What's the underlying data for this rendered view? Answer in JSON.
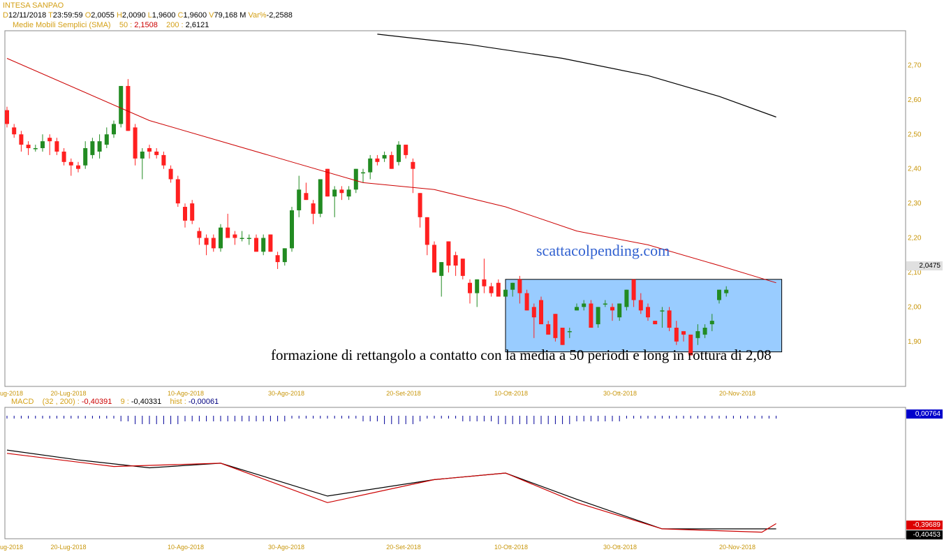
{
  "header": {
    "symbol": "INTESA SANPAO",
    "d_label": "D",
    "date": "12/11/2018",
    "t_label": "T",
    "time": "23:59:59",
    "o_label": "O",
    "open": "2,0055",
    "h_label": "H",
    "high": "2,0090",
    "l_label": "L",
    "low": "1,9600",
    "c_label": "C",
    "close": "1,9600",
    "v_label": "V",
    "volume": "79,168 M",
    "var_label": "Var%",
    "var": "-2,2588",
    "sma_label": "Medie Mobili Semplici (SMA)",
    "sma50_label": "50 :",
    "sma50": "2,1508",
    "sma200_label": "200 :",
    "sma200": "2,6121"
  },
  "macd_header": {
    "label": "MACD",
    "params": "(32 , 200) :",
    "macd": "-0,40391",
    "signal_label": "9 :",
    "signal": "-0,40331",
    "hist_label": "hist :",
    "hist": "-0,00061"
  },
  "price_tag": "2,0475",
  "macd_tags": {
    "hist": "0,00764",
    "macd": "-0,39689",
    "signal": "-0,40453"
  },
  "watermark": "scattacolpending.com",
  "annotation": "formazione di rettangolo a contatto con la media a 50 periodi e long in rottura di 2,08",
  "colors": {
    "up": "#228b22",
    "down": "#ff2020",
    "sma50": "#cc0000",
    "sma200": "#000000",
    "rect": "#99ccff",
    "axis_text": "#c8960a",
    "hist": "#000099"
  },
  "chart_data": {
    "type": "candlestick",
    "x_tick_labels": [
      "ug-2018",
      "20-Lug-2018",
      "10-Ago-2018",
      "30-Ago-2018",
      "20-Set-2018",
      "10-Ott-2018",
      "30-Ott-2018",
      "20-Nov-2018"
    ],
    "y_tick_labels": [
      "2,70",
      "2,60",
      "2,50",
      "2,40",
      "2,30",
      "2,20",
      "2,10",
      "2,00",
      "1,90"
    ],
    "ylim": [
      1.77,
      2.8
    ],
    "candles": [
      [
        2.57,
        2.58,
        2.52,
        2.53
      ],
      [
        2.52,
        2.53,
        2.49,
        2.5
      ],
      [
        2.5,
        2.51,
        2.45,
        2.47
      ],
      [
        2.47,
        2.48,
        2.44,
        2.46
      ],
      [
        2.46,
        2.47,
        2.45,
        2.46
      ],
      [
        2.46,
        2.5,
        2.45,
        2.48
      ],
      [
        2.49,
        2.5,
        2.44,
        2.48
      ],
      [
        2.48,
        2.49,
        2.44,
        2.45
      ],
      [
        2.45,
        2.46,
        2.41,
        2.42
      ],
      [
        2.42,
        2.43,
        2.38,
        2.41
      ],
      [
        2.41,
        2.42,
        2.39,
        2.4
      ],
      [
        2.41,
        2.48,
        2.4,
        2.46
      ],
      [
        2.44,
        2.49,
        2.43,
        2.48
      ],
      [
        2.45,
        2.5,
        2.43,
        2.48
      ],
      [
        2.47,
        2.52,
        2.46,
        2.5
      ],
      [
        2.5,
        2.54,
        2.49,
        2.53
      ],
      [
        2.53,
        2.64,
        2.52,
        2.64
      ],
      [
        2.64,
        2.66,
        2.51,
        2.51
      ],
      [
        2.52,
        2.53,
        2.41,
        2.43
      ],
      [
        2.43,
        2.46,
        2.37,
        2.45
      ],
      [
        2.46,
        2.47,
        2.43,
        2.45
      ],
      [
        2.45,
        2.46,
        2.43,
        2.44
      ],
      [
        2.44,
        2.45,
        2.4,
        2.41
      ],
      [
        2.4,
        2.41,
        2.36,
        2.37
      ],
      [
        2.37,
        2.38,
        2.29,
        2.3
      ],
      [
        2.29,
        2.3,
        2.23,
        2.25
      ],
      [
        2.3,
        2.31,
        2.24,
        2.25
      ],
      [
        2.22,
        2.23,
        2.18,
        2.2
      ],
      [
        2.2,
        2.21,
        2.15,
        2.18
      ],
      [
        2.2,
        2.21,
        2.16,
        2.17
      ],
      [
        2.17,
        2.24,
        2.16,
        2.23
      ],
      [
        2.23,
        2.27,
        2.2,
        2.2
      ],
      [
        2.21,
        2.22,
        2.18,
        2.2
      ],
      [
        2.2,
        2.22,
        2.19,
        2.2
      ],
      [
        2.2,
        2.21,
        2.18,
        2.2
      ],
      [
        2.2,
        2.21,
        2.16,
        2.16
      ],
      [
        2.16,
        2.21,
        2.15,
        2.2
      ],
      [
        2.21,
        2.21,
        2.16,
        2.16
      ],
      [
        2.15,
        2.16,
        2.11,
        2.13
      ],
      [
        2.13,
        2.17,
        2.12,
        2.17
      ],
      [
        2.17,
        2.29,
        2.16,
        2.28
      ],
      [
        2.28,
        2.38,
        2.26,
        2.34
      ],
      [
        2.33,
        2.36,
        2.31,
        2.31
      ],
      [
        2.3,
        2.31,
        2.24,
        2.27
      ],
      [
        2.27,
        2.37,
        2.26,
        2.37
      ],
      [
        2.4,
        2.4,
        2.32,
        2.32
      ],
      [
        2.32,
        2.35,
        2.26,
        2.34
      ],
      [
        2.34,
        2.35,
        2.31,
        2.33
      ],
      [
        2.32,
        2.35,
        2.31,
        2.34
      ],
      [
        2.34,
        2.4,
        2.33,
        2.4
      ],
      [
        2.39,
        2.4,
        2.36,
        2.39
      ],
      [
        2.39,
        2.44,
        2.37,
        2.43
      ],
      [
        2.43,
        2.44,
        2.41,
        2.42
      ],
      [
        2.43,
        2.45,
        2.42,
        2.44
      ],
      [
        2.44,
        2.45,
        2.4,
        2.4
      ],
      [
        2.42,
        2.48,
        2.41,
        2.47
      ],
      [
        2.47,
        2.47,
        2.43,
        2.44
      ],
      [
        2.42,
        2.43,
        2.33,
        2.4
      ],
      [
        2.33,
        2.33,
        2.23,
        2.26
      ],
      [
        2.26,
        2.26,
        2.15,
        2.18
      ],
      [
        2.18,
        2.19,
        2.1,
        2.1
      ],
      [
        2.09,
        2.13,
        2.03,
        2.13
      ],
      [
        2.19,
        2.19,
        2.1,
        2.12
      ],
      [
        2.15,
        2.16,
        2.09,
        2.12
      ],
      [
        2.14,
        2.14,
        2.08,
        2.09
      ],
      [
        2.07,
        2.08,
        2.01,
        2.04
      ],
      [
        2.04,
        2.08,
        2.0,
        2.08
      ],
      [
        2.08,
        2.14,
        2.04,
        2.06
      ],
      [
        2.06,
        2.07,
        2.03,
        2.04
      ],
      [
        2.07,
        2.08,
        2.03,
        2.03
      ],
      [
        2.03,
        2.05,
        2.03,
        2.05
      ],
      [
        2.05,
        2.07,
        2.03,
        2.07
      ],
      [
        2.08,
        2.09,
        2.01,
        2.04
      ],
      [
        2.04,
        2.05,
        1.99,
        1.99
      ],
      [
        2.0,
        2.01,
        1.91,
        1.97
      ],
      [
        2.02,
        2.03,
        1.95,
        1.95
      ],
      [
        1.95,
        1.96,
        1.92,
        1.92
      ],
      [
        1.98,
        1.98,
        1.9,
        1.91
      ],
      [
        1.94,
        1.94,
        1.89,
        1.89
      ],
      [
        1.93,
        1.94,
        1.91,
        1.93
      ],
      [
        1.99,
        2.01,
        1.99,
        2.0
      ],
      [
        2.0,
        2.02,
        1.99,
        2.01
      ],
      [
        2.01,
        2.02,
        1.94,
        1.94
      ],
      [
        1.95,
        2.0,
        1.94,
        2.0
      ],
      [
        2.01,
        2.02,
        2.0,
        2.01
      ],
      [
        2.0,
        2.01,
        1.96,
        1.99
      ],
      [
        1.97,
        2.01,
        1.96,
        2.01
      ],
      [
        2.0,
        2.05,
        1.99,
        2.05
      ],
      [
        2.08,
        2.08,
        2.0,
        2.02
      ],
      [
        2.02,
        2.04,
        1.98,
        1.99
      ],
      [
        2.0,
        2.01,
        1.96,
        1.97
      ],
      [
        1.96,
        1.96,
        1.95,
        1.95
      ],
      [
        1.99,
        2.0,
        1.94,
        1.99
      ],
      [
        1.99,
        2.0,
        1.93,
        1.94
      ],
      [
        1.94,
        1.96,
        1.89,
        1.9
      ],
      [
        1.93,
        1.93,
        1.9,
        1.92
      ],
      [
        1.92,
        1.92,
        1.86,
        1.86
      ],
      [
        1.91,
        1.95,
        1.89,
        1.93
      ],
      [
        1.92,
        1.95,
        1.91,
        1.94
      ],
      [
        1.95,
        1.98,
        1.93,
        1.96
      ],
      [
        2.02,
        2.05,
        2.01,
        2.05
      ],
      [
        2.04,
        2.06,
        2.03,
        2.05
      ]
    ],
    "sma50": [
      [
        0,
        2.72
      ],
      [
        10,
        2.63
      ],
      [
        20,
        2.54
      ],
      [
        30,
        2.48
      ],
      [
        40,
        2.42
      ],
      [
        50,
        2.36
      ],
      [
        60,
        2.34
      ],
      [
        70,
        2.29
      ],
      [
        80,
        2.22
      ],
      [
        90,
        2.18
      ],
      [
        100,
        2.12
      ],
      [
        108,
        2.07
      ]
    ],
    "sma200": [
      [
        52,
        2.79
      ],
      [
        65,
        2.76
      ],
      [
        78,
        2.72
      ],
      [
        90,
        2.67
      ],
      [
        100,
        2.61
      ],
      [
        108,
        2.55
      ]
    ],
    "rect": {
      "x0": 70,
      "x1": 108,
      "y0": 1.87,
      "y1": 2.08
    },
    "macd": [
      [
        0,
        -0.29
      ],
      [
        15,
        -0.31
      ],
      [
        30,
        -0.305
      ],
      [
        45,
        -0.365
      ],
      [
        60,
        -0.33
      ],
      [
        70,
        -0.32
      ],
      [
        80,
        -0.365
      ],
      [
        92,
        -0.405
      ],
      [
        106,
        -0.41
      ],
      [
        108,
        -0.397
      ]
    ],
    "signal": [
      [
        0,
        -0.285
      ],
      [
        10,
        -0.3
      ],
      [
        20,
        -0.312
      ],
      [
        30,
        -0.305
      ],
      [
        45,
        -0.355
      ],
      [
        60,
        -0.33
      ],
      [
        70,
        -0.32
      ],
      [
        80,
        -0.36
      ],
      [
        92,
        -0.405
      ],
      [
        108,
        -0.405
      ]
    ],
    "macd_ylim": [
      -0.42,
      -0.22
    ],
    "hist": [
      1,
      1,
      1,
      1,
      1,
      1,
      1,
      1,
      1,
      1,
      1,
      1,
      1,
      1,
      1,
      1,
      2,
      2,
      3,
      3,
      3,
      3,
      3,
      3,
      3,
      2,
      2,
      2,
      2,
      2,
      2,
      2,
      2,
      2,
      2,
      2,
      2,
      2,
      2,
      2,
      1,
      1,
      1,
      1,
      1,
      1,
      1,
      1,
      1,
      1,
      2,
      2,
      2,
      3,
      3,
      3,
      3,
      3,
      2,
      1,
      1,
      1,
      1,
      1,
      2,
      2,
      2,
      2,
      2,
      3,
      3,
      3,
      3,
      3,
      3,
      3,
      3,
      3,
      3,
      3,
      2,
      2,
      2,
      2,
      2,
      2,
      2,
      1,
      1,
      1,
      1,
      1,
      1,
      1,
      1,
      1,
      1,
      1,
      1,
      1,
      1,
      1,
      1,
      1,
      1,
      1,
      1,
      1,
      1
    ]
  }
}
